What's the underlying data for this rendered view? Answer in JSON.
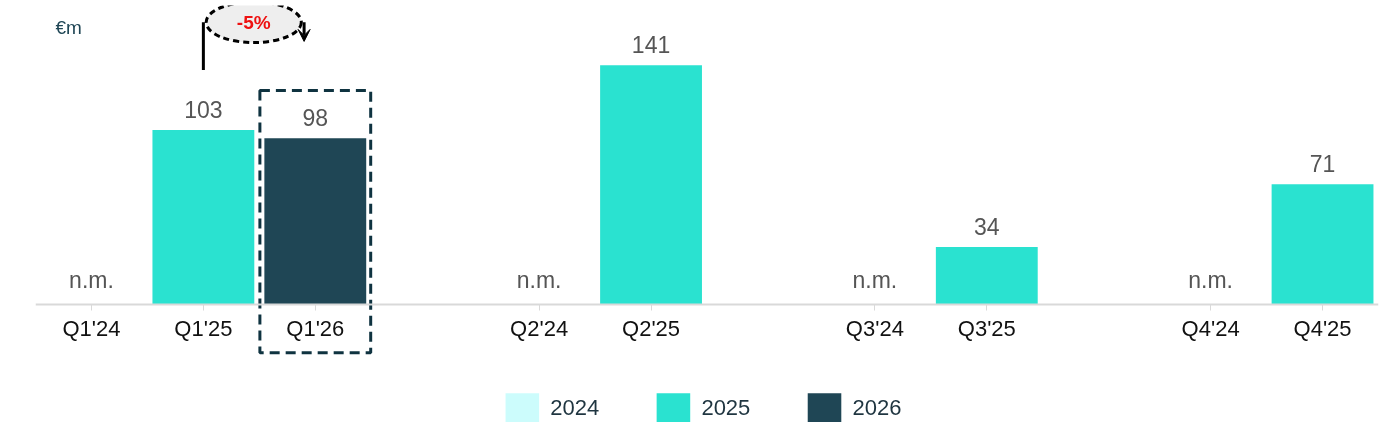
{
  "chart_data": {
    "type": "bar",
    "categories": [
      "Q1'24",
      "Q1'25",
      "Q1'26",
      null,
      "Q2'24",
      "Q2'25",
      null,
      "Q3'24",
      "Q3'25",
      null,
      "Q4'24",
      "Q4'25"
    ],
    "series": [
      {
        "name": "2024",
        "color": "#ccfcfc",
        "values": [
          null,
          null,
          null,
          null,
          null,
          null,
          null,
          null,
          null,
          null,
          null,
          null
        ],
        "value_labels": [
          "n.m.",
          null,
          null,
          null,
          "n.m.",
          null,
          null,
          "n.m.",
          null,
          null,
          "n.m.",
          null
        ]
      },
      {
        "name": "2025",
        "color": "#2ae2d0",
        "values": [
          null,
          103,
          null,
          null,
          null,
          141,
          null,
          null,
          34,
          null,
          null,
          71
        ],
        "value_labels": [
          null,
          "103",
          null,
          null,
          null,
          "141",
          null,
          null,
          "34",
          null,
          null,
          "71"
        ]
      },
      {
        "name": "2026",
        "color": "#1f4655",
        "values": [
          null,
          null,
          98,
          null,
          null,
          null,
          null,
          null,
          null,
          null,
          null,
          null
        ],
        "value_labels": [
          null,
          null,
          "98",
          null,
          null,
          null,
          null,
          null,
          null,
          null,
          null,
          null
        ]
      }
    ],
    "annotations": [
      "€m",
      "-5%"
    ],
    "legend": "bottom"
  }
}
